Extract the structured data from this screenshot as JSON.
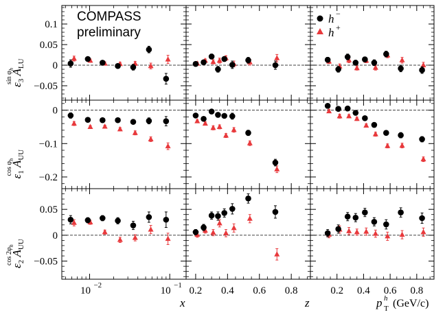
{
  "chart_data": {
    "type": "scatter",
    "watermark": {
      "line1": "COMPASS",
      "line2": "preliminary"
    },
    "legend": {
      "placement": "top-right",
      "entries": [
        {
          "label": "h",
          "sup": "−",
          "marker": "circle",
          "color": "#000000"
        },
        {
          "label": "h",
          "sup": "+",
          "marker": "triangle",
          "color": "#e8393c"
        }
      ]
    },
    "colors": {
      "neg": "#000000",
      "pos": "#e8393c"
    },
    "columns": [
      {
        "key": "x",
        "xlabel": "x",
        "scale": "log",
        "xlim": [
          0.0045,
          0.16
        ],
        "ticks": [
          {
            "v": 0.01,
            "base": "10",
            "exp": "−2"
          },
          {
            "v": 0.1,
            "base": "10",
            "exp": "−1"
          }
        ],
        "minor": [
          0.005,
          0.006,
          0.007,
          0.008,
          0.009,
          0.02,
          0.03,
          0.04,
          0.05,
          0.06,
          0.07,
          0.08,
          0.09
        ]
      },
      {
        "key": "z",
        "xlabel": "z",
        "scale": "linear",
        "xlim": [
          0.14,
          0.92
        ],
        "ticks": [
          {
            "v": 0.2,
            "t": "0.2"
          },
          {
            "v": 0.4,
            "t": "0.4"
          },
          {
            "v": 0.6,
            "t": "0.6"
          },
          {
            "v": 0.8,
            "t": "0.8"
          }
        ],
        "minor": [
          0.25,
          0.3,
          0.35,
          0.45,
          0.5,
          0.55,
          0.65,
          0.7,
          0.75,
          0.85,
          0.9
        ]
      },
      {
        "key": "pt",
        "xlabel": "p",
        "xlabel_sup": "h",
        "xlabel_sub": "T",
        "xlabel_unit": "(GeV/c)",
        "scale": "linear",
        "xlim": [
          0.0,
          0.93
        ],
        "ticks": [
          {
            "v": 0.2,
            "t": "0.2"
          },
          {
            "v": 0.4,
            "t": "0.4"
          },
          {
            "v": 0.6,
            "t": "0.6"
          },
          {
            "v": 0.8,
            "t": "0.8"
          }
        ],
        "minor": [
          0.05,
          0.1,
          0.15,
          0.25,
          0.3,
          0.35,
          0.45,
          0.5,
          0.55,
          0.65,
          0.7,
          0.75,
          0.85,
          0.9
        ]
      }
    ],
    "rows": [
      {
        "key": "sinphi",
        "ylabel": "ε₃ A_LU^{sin φh}",
        "yl_eps": "ε",
        "yl_sub": "3",
        "yl_A": "A",
        "yl_Asub": "LU",
        "yl_sup": "sin φ",
        "yl_supsub": "h",
        "ylim": [
          -0.085,
          0.145
        ],
        "ticks": [
          {
            "v": -0.05,
            "t": "−0.05"
          },
          {
            "v": 0,
            "t": "0"
          },
          {
            "v": 0.05,
            "t": "0.05"
          },
          {
            "v": 0.1,
            "t": "0.1"
          }
        ],
        "minor": [
          -0.08,
          -0.07,
          -0.06,
          -0.04,
          -0.03,
          -0.02,
          -0.01,
          0.01,
          0.02,
          0.03,
          0.04,
          0.06,
          0.07,
          0.08,
          0.09,
          0.11,
          0.12,
          0.13,
          0.14
        ]
      },
      {
        "key": "cosphi",
        "ylabel": "ε₁ A_UU^{cos φh}",
        "yl_eps": "ε",
        "yl_sub": "1",
        "yl_A": "A",
        "yl_Asub": "UU",
        "yl_sup": "cos φ",
        "yl_supsub": "h",
        "ylim": [
          -0.235,
          0.03
        ],
        "ticks": [
          {
            "v": -0.2,
            "t": "−0.2"
          },
          {
            "v": -0.1,
            "t": "−0.1"
          },
          {
            "v": 0,
            "t": "0"
          }
        ],
        "minor": [
          -0.22,
          -0.18,
          -0.16,
          -0.14,
          -0.12,
          -0.08,
          -0.06,
          -0.04,
          -0.02,
          0.02
        ]
      },
      {
        "key": "cos2phi",
        "ylabel": "ε₂ A_UU^{cos 2φh}",
        "yl_eps": "ε",
        "yl_sub": "2",
        "yl_A": "A",
        "yl_Asub": "UU",
        "yl_sup": "cos 2φ",
        "yl_supsub": "h",
        "ylim": [
          -0.085,
          0.09
        ],
        "ticks": [
          {
            "v": -0.05,
            "t": "−0.05"
          },
          {
            "v": 0,
            "t": "0"
          },
          {
            "v": 0.05,
            "t": "0.05"
          }
        ],
        "minor": [
          -0.08,
          -0.07,
          -0.06,
          -0.04,
          -0.03,
          -0.02,
          -0.01,
          0.01,
          0.02,
          0.03,
          0.04,
          0.06,
          0.07,
          0.08
        ]
      }
    ],
    "series": {
      "x": {
        "neg": {
          "sinphi": {
            "x": [
              0.0058,
              0.0095,
              0.0145,
              0.0225,
              0.035,
              0.055,
              0.09
            ],
            "y": [
              0.004,
              0.015,
              0.006,
              -0.002,
              -0.005,
              0.038,
              -0.033
            ],
            "e": [
              0.009,
              0.005,
              0.004,
              0.005,
              0.007,
              0.008,
              0.013
            ]
          },
          "cosphi": {
            "x": [
              0.0058,
              0.0095,
              0.0145,
              0.0225,
              0.035,
              0.055,
              0.09
            ],
            "y": [
              -0.016,
              -0.029,
              -0.03,
              -0.03,
              -0.035,
              -0.032,
              -0.033
            ],
            "e": [
              0.008,
              0.004,
              0.004,
              0.005,
              0.007,
              0.009,
              0.014
            ]
          },
          "cos2phi": {
            "x": [
              0.0058,
              0.0095,
              0.0145,
              0.0225,
              0.035,
              0.055,
              0.09
            ],
            "y": [
              0.03,
              0.029,
              0.033,
              0.028,
              0.019,
              0.035,
              0.03
            ],
            "e": [
              0.008,
              0.005,
              0.005,
              0.006,
              0.008,
              0.01,
              0.015
            ]
          }
        },
        "pos": {
          "sinphi": {
            "x": [
              0.0064,
              0.0102,
              0.0155,
              0.024,
              0.037,
              0.058,
              0.095
            ],
            "y": [
              0.016,
              0.011,
              0.004,
              0.003,
              0.004,
              -0.002,
              0.014
            ],
            "e": [
              0.006,
              0.004,
              0.004,
              0.004,
              0.005,
              0.007,
              0.01
            ]
          },
          "cosphi": {
            "x": [
              0.0064,
              0.0102,
              0.0155,
              0.024,
              0.037,
              0.058,
              0.095
            ],
            "y": [
              -0.04,
              -0.05,
              -0.049,
              -0.057,
              -0.068,
              -0.087,
              -0.108
            ],
            "e": [
              0.006,
              0.004,
              0.004,
              0.005,
              0.006,
              0.007,
              0.01
            ]
          },
          "cos2phi": {
            "x": [
              0.0064,
              0.0102,
              0.0155,
              0.024,
              0.037,
              0.058,
              0.095
            ],
            "y": [
              0.024,
              0.025,
              0.006,
              -0.009,
              -0.005,
              0.011,
              -0.007
            ],
            "e": [
              0.006,
              0.004,
              0.004,
              0.005,
              0.006,
              0.008,
              0.011
            ]
          }
        }
      },
      "z": {
        "neg": {
          "sinphi": {
            "x": [
              0.2,
              0.25,
              0.3,
              0.34,
              0.38,
              0.43,
              0.53,
              0.7
            ],
            "y": [
              0.003,
              0.007,
              0.021,
              -0.01,
              0.015,
              0.001,
              0.012,
              0.0
            ],
            "e": [
              0.004,
              0.005,
              0.006,
              0.007,
              0.006,
              0.009,
              0.007,
              0.01
            ]
          },
          "cosphi": {
            "x": [
              0.2,
              0.25,
              0.3,
              0.34,
              0.38,
              0.43,
              0.53,
              0.7
            ],
            "y": [
              -0.016,
              -0.026,
              -0.004,
              -0.014,
              -0.017,
              -0.018,
              -0.068,
              -0.157
            ],
            "e": [
              0.004,
              0.005,
              0.006,
              0.007,
              0.006,
              0.009,
              0.008,
              0.01
            ]
          },
          "cos2phi": {
            "x": [
              0.2,
              0.25,
              0.3,
              0.34,
              0.38,
              0.43,
              0.53,
              0.7
            ],
            "y": [
              0.006,
              0.015,
              0.038,
              0.037,
              0.043,
              0.051,
              0.071,
              0.045
            ],
            "e": [
              0.005,
              0.006,
              0.007,
              0.008,
              0.008,
              0.01,
              0.009,
              0.012
            ]
          }
        },
        "pos": {
          "sinphi": {
            "x": [
              0.21,
              0.26,
              0.31,
              0.35,
              0.39,
              0.44,
              0.54,
              0.71
            ],
            "y": [
              0.004,
              0.011,
              0.008,
              0.011,
              0.017,
              0.003,
              0.007,
              0.017
            ],
            "e": [
              0.004,
              0.004,
              0.005,
              0.006,
              0.006,
              0.007,
              0.007,
              0.009
            ]
          },
          "cosphi": {
            "x": [
              0.21,
              0.26,
              0.31,
              0.35,
              0.39,
              0.44,
              0.54,
              0.71
            ],
            "y": [
              -0.033,
              -0.04,
              -0.053,
              -0.05,
              -0.076,
              -0.059,
              -0.099,
              -0.177
            ],
            "e": [
              0.004,
              0.005,
              0.006,
              0.006,
              0.006,
              0.007,
              0.007,
              0.01
            ]
          },
          "cos2phi": {
            "x": [
              0.21,
              0.26,
              0.31,
              0.35,
              0.39,
              0.44,
              0.54,
              0.71
            ],
            "y": [
              0.001,
              0.009,
              0.005,
              0.023,
              0.004,
              0.014,
              0.032,
              -0.037
            ],
            "e": [
              0.005,
              0.005,
              0.006,
              0.007,
              0.007,
              0.008,
              0.008,
              0.011
            ]
          }
        }
      },
      "pt": {
        "neg": {
          "sinphi": {
            "x": [
              0.13,
              0.21,
              0.28,
              0.34,
              0.41,
              0.48,
              0.57,
              0.68,
              0.84
            ],
            "y": [
              0.013,
              -0.01,
              0.02,
              0.006,
              0.014,
              0.006,
              0.027,
              -0.008,
              -0.012
            ],
            "e": [
              0.006,
              0.007,
              0.007,
              0.006,
              0.006,
              0.007,
              0.007,
              0.008,
              0.008
            ]
          },
          "cosphi": {
            "x": [
              0.13,
              0.21,
              0.28,
              0.34,
              0.41,
              0.48,
              0.57,
              0.68,
              0.84
            ],
            "y": [
              0.013,
              0.004,
              0.005,
              -0.008,
              -0.024,
              -0.044,
              -0.068,
              -0.075,
              -0.087
            ],
            "e": [
              0.006,
              0.007,
              0.006,
              0.006,
              0.006,
              0.007,
              0.007,
              0.008,
              0.008
            ]
          },
          "cos2phi": {
            "x": [
              0.13,
              0.21,
              0.28,
              0.34,
              0.41,
              0.48,
              0.57,
              0.68,
              0.84
            ],
            "y": [
              0.004,
              0.012,
              0.036,
              0.034,
              0.044,
              0.026,
              0.021,
              0.044,
              0.033
            ],
            "e": [
              0.007,
              0.008,
              0.008,
              0.008,
              0.008,
              0.008,
              0.009,
              0.009,
              0.01
            ]
          }
        },
        "pos": {
          "sinphi": {
            "x": [
              0.14,
              0.22,
              0.29,
              0.35,
              0.42,
              0.49,
              0.58,
              0.69,
              0.85
            ],
            "y": [
              0.009,
              -0.003,
              0.012,
              -0.007,
              0.011,
              -0.006,
              0.024,
              0.012,
              0.0
            ],
            "e": [
              0.005,
              0.006,
              0.006,
              0.005,
              0.005,
              0.006,
              0.006,
              0.007,
              0.007
            ]
          },
          "cosphi": {
            "x": [
              0.14,
              0.22,
              0.29,
              0.35,
              0.42,
              0.49,
              0.58,
              0.69,
              0.85
            ],
            "y": [
              -0.003,
              -0.018,
              -0.018,
              -0.026,
              -0.046,
              -0.072,
              -0.107,
              -0.106,
              -0.147
            ],
            "e": [
              0.005,
              0.006,
              0.005,
              0.005,
              0.005,
              0.006,
              0.006,
              0.007,
              0.007
            ]
          },
          "cos2phi": {
            "x": [
              0.14,
              0.22,
              0.29,
              0.35,
              0.42,
              0.49,
              0.58,
              0.69,
              0.85
            ],
            "y": [
              0.001,
              0.011,
              0.008,
              0.006,
              0.007,
              0.003,
              -0.002,
              0.001,
              0.006
            ],
            "e": [
              0.006,
              0.007,
              0.007,
              0.006,
              0.007,
              0.007,
              0.008,
              0.008,
              0.008
            ]
          }
        }
      }
    }
  }
}
